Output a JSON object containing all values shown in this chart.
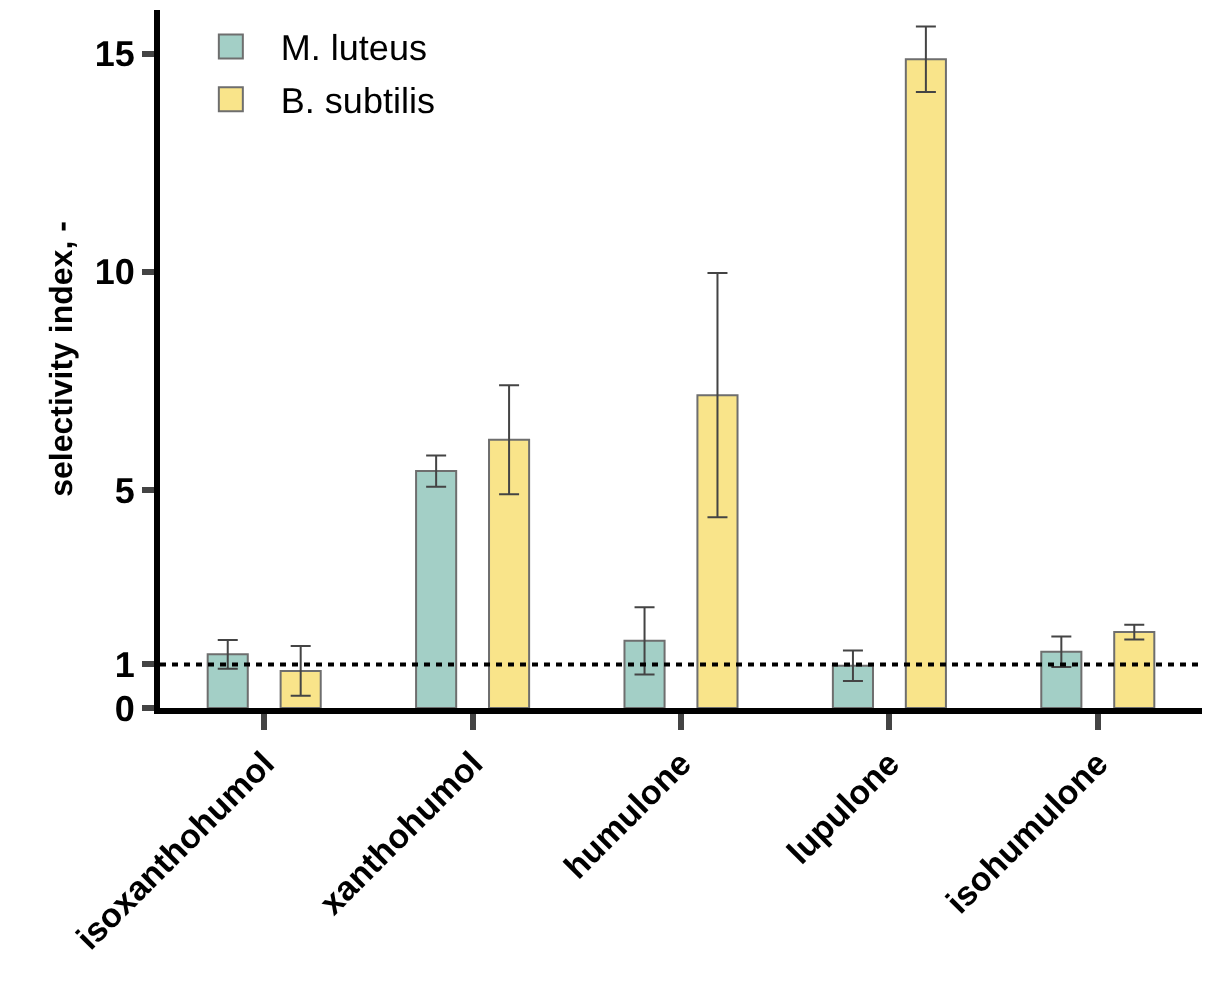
{
  "chart_data": {
    "type": "bar",
    "ylabel": "selectivity index, -",
    "categories": [
      "isoxanthohumol",
      "xanthohumol",
      "humulone",
      "lupulone",
      "isohumulone"
    ],
    "series": [
      {
        "name": "M. luteus",
        "color": "#a3cfc6",
        "values": [
          1.23,
          5.43,
          1.54,
          0.97,
          1.29
        ],
        "errors": [
          0.33,
          0.36,
          0.77,
          0.35,
          0.35
        ]
      },
      {
        "name": "B. subtilis",
        "color": "#f9e48a",
        "values": [
          0.85,
          6.15,
          7.17,
          14.87,
          1.74
        ],
        "errors": [
          0.57,
          1.25,
          2.8,
          0.75,
          0.17
        ]
      }
    ],
    "ylim": [
      0,
      16
    ],
    "yticks": [
      0,
      1,
      5,
      10,
      15
    ],
    "grid": false,
    "legend": "top left",
    "ref_lines": [
      {
        "axis": "y",
        "value": 1,
        "line_style": "dotted",
        "color": "#000000"
      }
    ]
  }
}
